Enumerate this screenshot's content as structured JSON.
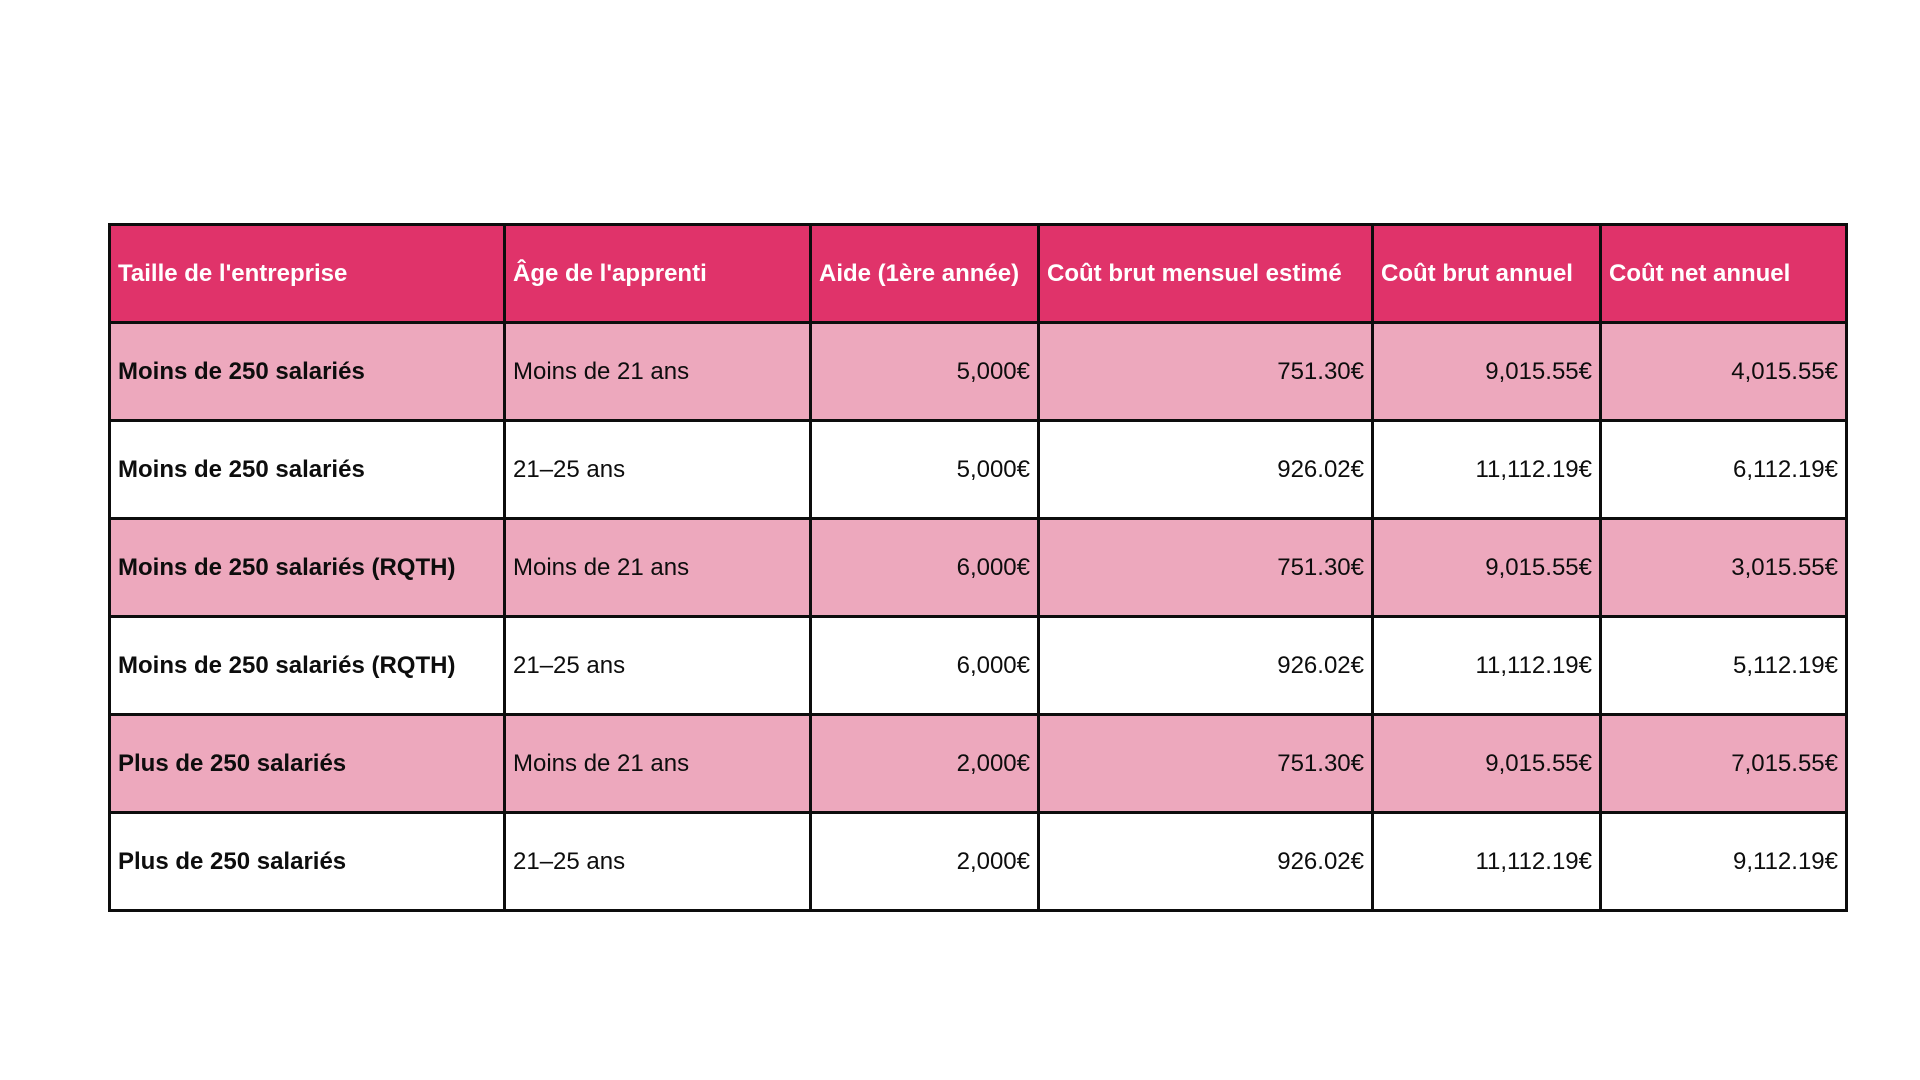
{
  "table": {
    "headers": [
      "Taille de l'entreprise",
      "Âge de l'apprenti",
      "Aide (1ère année)",
      "Coût brut mensuel estimé",
      "Coût brut annuel",
      "Coût net annuel"
    ],
    "rows": [
      [
        "Moins de 250 salariés",
        "Moins de 21 ans",
        "5,000€",
        "751.30€",
        "9,015.55€",
        "4,015.55€"
      ],
      [
        "Moins de 250 salariés",
        "21–25 ans",
        "5,000€",
        "926.02€",
        "11,112.19€",
        "6,112.19€"
      ],
      [
        "Moins de 250 salariés (RQTH)",
        "Moins de 21 ans",
        "6,000€",
        "751.30€",
        "9,015.55€",
        "3,015.55€"
      ],
      [
        "Moins de 250 salariés (RQTH)",
        "21–25 ans",
        "6,000€",
        "926.02€",
        "11,112.19€",
        "5,112.19€"
      ],
      [
        "Plus de 250 salariés",
        "Moins de 21 ans",
        "2,000€",
        "751.30€",
        "9,015.55€",
        "7,015.55€"
      ],
      [
        "Plus de 250 salariés",
        "21–25 ans",
        "2,000€",
        "926.02€",
        "11,112.19€",
        "9,112.19€"
      ]
    ]
  },
  "colors": {
    "header_bg": "#e0336a",
    "header_text": "#ffffff",
    "row_alt_bg": "#eda8bd",
    "row_bg": "#ffffff",
    "border": "#0d0d0d"
  }
}
